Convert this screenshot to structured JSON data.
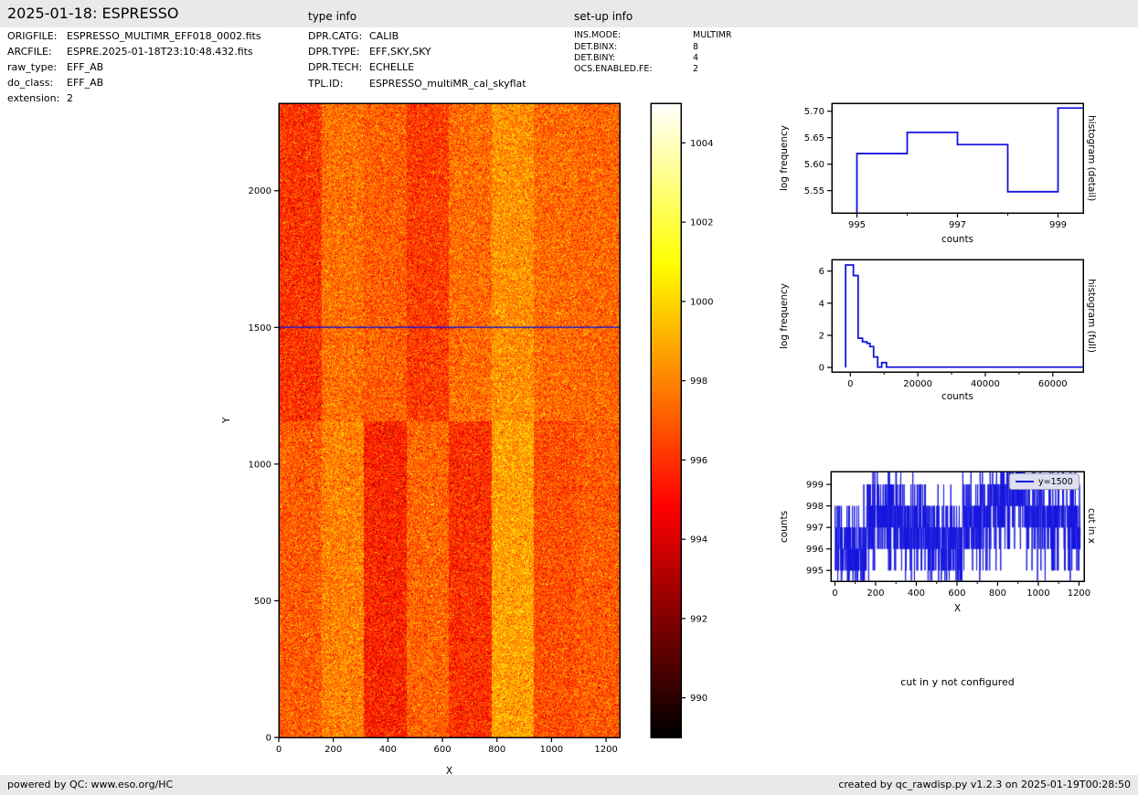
{
  "header": {
    "title": "2025-01-18: ESPRESSO",
    "type_info_label": "type info",
    "setup_info_label": "set-up info"
  },
  "file_info": [
    {
      "label": "ORIGFILE:",
      "value": "ESPRESSO_MULTIMR_EFF018_0002.fits"
    },
    {
      "label": "ARCFILE:",
      "value": "ESPRE.2025-01-18T23:10:48.432.fits"
    },
    {
      "label": "raw_type:",
      "value": "EFF_AB"
    },
    {
      "label": "do_class:",
      "value": "EFF_AB"
    },
    {
      "label": "extension:",
      "value": "2"
    }
  ],
  "type_info": [
    {
      "label": "DPR.CATG:",
      "value": "CALIB"
    },
    {
      "label": "DPR.TYPE:",
      "value": "EFF,SKY,SKY"
    },
    {
      "label": "DPR.TECH:",
      "value": "ECHELLE"
    },
    {
      "label": "TPL.ID:",
      "value": "ESPRESSO_multiMR_cal_skyflat"
    }
  ],
  "setup_info": [
    {
      "label": "INS.MODE:",
      "value": "MULTIMR"
    },
    {
      "label": "DET.BINX:",
      "value": "8"
    },
    {
      "label": "DET.BINY:",
      "value": "4"
    },
    {
      "label": "OCS.ENABLED.FE:",
      "value": "2"
    }
  ],
  "notes": {
    "cut_in_y": "cut in y not configured"
  },
  "footer": {
    "left": "powered by QC: www.eso.org/HC",
    "right": "created by qc_rawdisp.py v1.2.3 on 2025-01-19T00:28:50"
  },
  "colors": {
    "line_blue": "#1414dd",
    "bar_gray": "#e9e9e9",
    "legend_bg": "#dfdff2",
    "axis_black": "#000000"
  },
  "chart_data": [
    {
      "id": "raw_image",
      "type": "heatmap",
      "xlabel": "X",
      "ylabel": "Y",
      "xlim": [
        0,
        1250
      ],
      "ylim": [
        0,
        2320
      ],
      "x_ticks": [
        0,
        200,
        400,
        600,
        800,
        1000,
        1200
      ],
      "x_tick_labels": [
        "0",
        "200",
        "400",
        "600",
        "800",
        "1000",
        "1200"
      ],
      "y_ticks": [
        0,
        500,
        1000,
        1500,
        2000
      ],
      "y_tick_labels": [
        "0",
        "500",
        "1000",
        "1500",
        "2000"
      ],
      "colormap": "hot",
      "cut_line_y": 1500,
      "segments_x": [
        0,
        156,
        312,
        469,
        625,
        781,
        937,
        1094,
        1250
      ],
      "values_upper": [
        996.0,
        997.5,
        997.1,
        996.2,
        997.4,
        998.3,
        997.4,
        997.3
      ],
      "values_lower": [
        997.0,
        997.9,
        995.6,
        997.2,
        995.9,
        998.7,
        996.7,
        997.0
      ],
      "split_y": 1155,
      "noise_sigma": 1.25,
      "noise_seed": 20250118,
      "colorbar": {
        "vmin": 989,
        "vmax": 1005,
        "ticks": [
          990,
          992,
          994,
          996,
          998,
          1000,
          1002,
          1004
        ],
        "tick_labels": [
          "990",
          "992",
          "994",
          "996",
          "998",
          "1000",
          "1002",
          "1004"
        ]
      }
    },
    {
      "id": "histogram_detail",
      "type": "step",
      "side_label": "histogram (detail)",
      "xlabel": "counts",
      "ylabel": "log frequency",
      "xlim": [
        994.5,
        999.5
      ],
      "ylim": [
        5.508,
        5.715
      ],
      "x_ticks": [
        995,
        997,
        999
      ],
      "x_tick_labels": [
        "995",
        "997",
        "999"
      ],
      "x_minor_ticks": [
        996,
        998
      ],
      "y_ticks": [
        5.55,
        5.6,
        5.65,
        5.7
      ],
      "y_tick_labels": [
        "5.55",
        "5.60",
        "5.65",
        "5.70"
      ],
      "start_y": 5.508,
      "steps": [
        [
          995,
          5.62
        ],
        [
          996,
          5.66
        ],
        [
          997,
          5.637
        ],
        [
          998,
          5.548
        ],
        [
          999,
          5.706
        ]
      ],
      "end_x": 999.5
    },
    {
      "id": "histogram_full",
      "type": "step",
      "side_label": "histogram (full)",
      "xlabel": "counts",
      "ylabel": "log frequency",
      "xlim": [
        -5500,
        69000
      ],
      "ylim": [
        -0.28,
        6.72
      ],
      "x_ticks": [
        0,
        20000,
        40000,
        60000
      ],
      "x_tick_labels": [
        "0",
        "20000",
        "40000",
        "60000"
      ],
      "x_minor_ticks": [
        10000,
        30000,
        50000
      ],
      "y_ticks": [
        0,
        2,
        4,
        6
      ],
      "y_tick_labels": [
        "0",
        "2",
        "4",
        "6"
      ],
      "start_y": 0,
      "steps": [
        [
          -1400,
          6.38
        ],
        [
          900,
          5.72
        ],
        [
          2300,
          1.82
        ],
        [
          3600,
          1.6
        ],
        [
          4900,
          1.5
        ],
        [
          5800,
          1.3
        ],
        [
          6900,
          0.65
        ],
        [
          8100,
          0.02
        ],
        [
          9300,
          0.3
        ],
        [
          10700,
          0.02
        ]
      ],
      "end_x": 69000
    },
    {
      "id": "cut_in_x",
      "type": "line",
      "side_label": "cut in x",
      "legend": "y=1500",
      "xlabel": "X",
      "ylabel": "counts",
      "xlim": [
        -20,
        1225
      ],
      "ylim": [
        994.5,
        999.6
      ],
      "x_ticks": [
        0,
        200,
        400,
        600,
        800,
        1000,
        1200
      ],
      "x_tick_labels": [
        "0",
        "200",
        "400",
        "600",
        "800",
        "1000",
        "1200"
      ],
      "x_minor_ticks": [
        100,
        300,
        500,
        700,
        900,
        1100
      ],
      "y_ticks": [
        995,
        996,
        997,
        998,
        999
      ],
      "y_tick_labels": [
        "995",
        "996",
        "997",
        "998",
        "999"
      ],
      "n_points": 1207,
      "segment_means": [
        996.0,
        997.5,
        997.1,
        996.2,
        997.4,
        998.3,
        997.4,
        997.3
      ],
      "noise_sigma": 1.2,
      "noise_seed": 777
    }
  ]
}
